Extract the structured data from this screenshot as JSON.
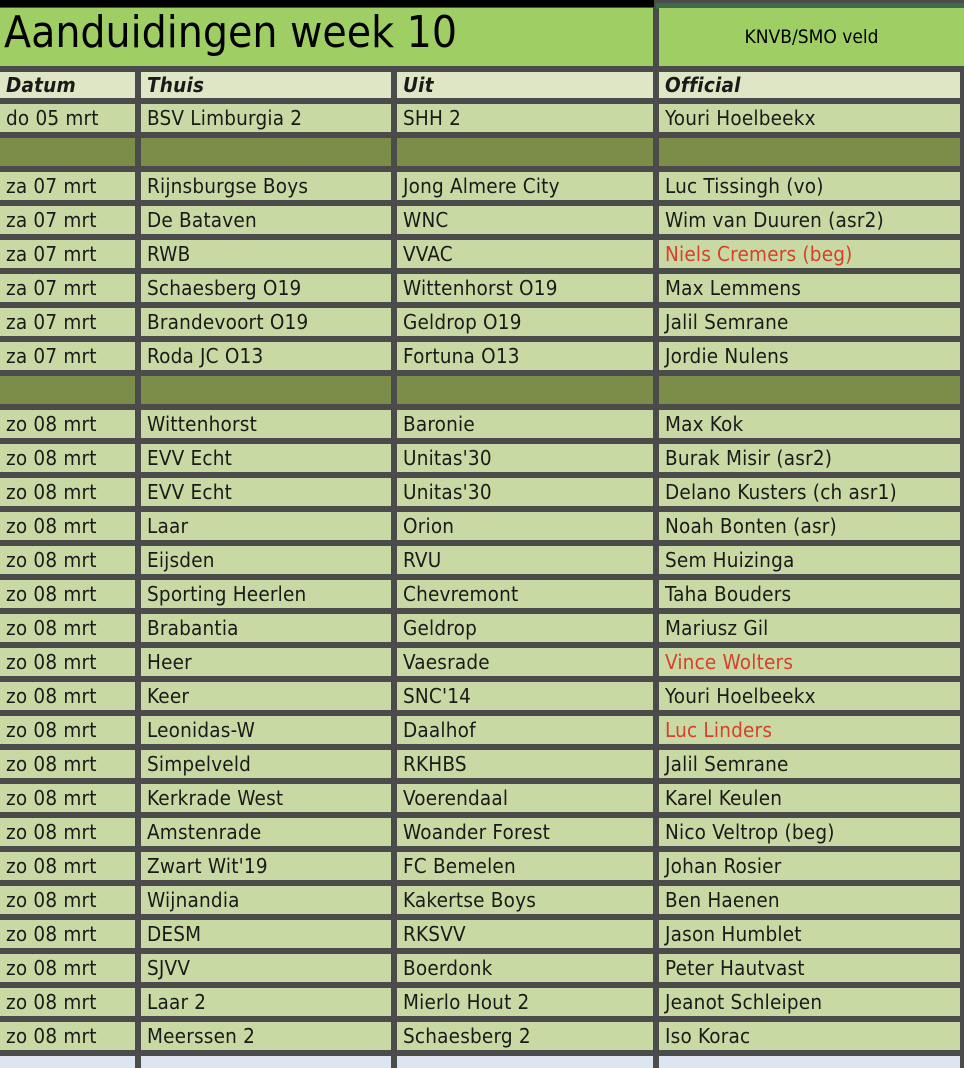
{
  "title": "Aanduidingen week 10",
  "subtitle": "KNVB/SMO veld",
  "headers": [
    "Datum",
    "Thuis",
    "Uit",
    "Official"
  ],
  "colors": {
    "title_bg": "#9fcf64",
    "cell_bg": "#c9d9a3",
    "separator_bg": "#7b8d48",
    "highlight_text": "#d6402c"
  },
  "rows": [
    {
      "d": "do 05 mrt",
      "h": "BSV Limburgia 2",
      "u": "SHH 2",
      "o": "Youri Hoelbeekx"
    },
    {
      "sep": true
    },
    {
      "d": "za 07 mrt",
      "h": "Rijnsburgse Boys",
      "u": "Jong Almere City",
      "o": "Luc Tissingh (vo)"
    },
    {
      "d": "za 07 mrt",
      "h": "De Bataven",
      "u": "WNC",
      "o": "Wim van Duuren (asr2)"
    },
    {
      "d": "za 07 mrt",
      "h": "RWB",
      "u": "VVAC",
      "o": "Niels Cremers (beg)",
      "red": true
    },
    {
      "d": "za 07 mrt",
      "h": "Schaesberg O19",
      "u": "Wittenhorst O19",
      "o": "Max Lemmens"
    },
    {
      "d": "za 07 mrt",
      "h": "Brandevoort O19",
      "u": "Geldrop O19",
      "o": "Jalil Semrane"
    },
    {
      "d": "za 07 mrt",
      "h": "Roda JC O13",
      "u": "Fortuna O13",
      "o": "Jordie Nulens"
    },
    {
      "sep": true
    },
    {
      "d": "zo 08 mrt",
      "h": "Wittenhorst",
      "u": "Baronie",
      "o": "Max Kok"
    },
    {
      "d": "zo 08 mrt",
      "h": "EVV Echt",
      "u": "Unitas'30",
      "o": "Burak Misir (asr2)"
    },
    {
      "d": "zo 08 mrt",
      "h": "EVV Echt",
      "u": "Unitas'30",
      "o": "Delano Kusters (ch asr1)"
    },
    {
      "d": "zo 08 mrt",
      "h": "Laar",
      "u": "Orion",
      "o": "Noah Bonten (asr)"
    },
    {
      "d": "zo 08 mrt",
      "h": "Eijsden",
      "u": "RVU",
      "o": "Sem Huizinga"
    },
    {
      "d": "zo 08 mrt",
      "h": "Sporting Heerlen",
      "u": "Chevremont",
      "o": "Taha Bouders"
    },
    {
      "d": "zo 08 mrt",
      "h": "Brabantia",
      "u": "Geldrop",
      "o": "Mariusz Gil"
    },
    {
      "d": "zo 08 mrt",
      "h": "Heer",
      "u": "Vaesrade",
      "o": "Vince Wolters",
      "red": true
    },
    {
      "d": "zo 08 mrt",
      "h": "Keer",
      "u": "SNC'14",
      "o": "Youri Hoelbeekx"
    },
    {
      "d": "zo 08 mrt",
      "h": "Leonidas-W",
      "u": "Daalhof",
      "o": "Luc Linders",
      "red": true
    },
    {
      "d": "zo 08 mrt",
      "h": "Simpelveld",
      "u": "RKHBS",
      "o": "Jalil Semrane"
    },
    {
      "d": "zo 08 mrt",
      "h": "Kerkrade West",
      "u": "Voerendaal",
      "o": "Karel Keulen"
    },
    {
      "d": "zo 08 mrt",
      "h": "Amstenrade",
      "u": "Woander Forest",
      "o": "Nico Veltrop (beg)"
    },
    {
      "d": "zo 08 mrt",
      "h": "Zwart Wit'19",
      "u": "FC Bemelen",
      "o": "Johan Rosier"
    },
    {
      "d": "zo 08 mrt",
      "h": "Wijnandia",
      "u": "Kakertse Boys",
      "o": "Ben Haenen"
    },
    {
      "d": "zo 08 mrt",
      "h": "DESM",
      "u": "RKSVV",
      "o": "Jason Humblet"
    },
    {
      "d": "zo 08 mrt",
      "h": "SJVV",
      "u": "Boerdonk",
      "o": "Peter Hautvast"
    },
    {
      "d": "zo 08 mrt",
      "h": "Laar 2",
      "u": "Mierlo Hout 2",
      "o": "Jeanot Schleipen"
    },
    {
      "d": "zo 08 mrt",
      "h": "Meerssen 2",
      "u": "Schaesberg 2",
      "o": "Iso Korac"
    }
  ]
}
